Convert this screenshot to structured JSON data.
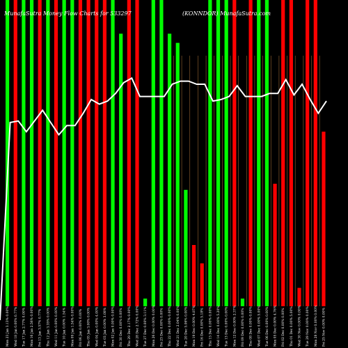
{
  "chart_data": {
    "type": "bar",
    "title_left": "MunafaSutra Money Flow Charts for 533297",
    "title_right": "(KONNDOR) MunafaSutra.com",
    "colors": {
      "background": "#000000",
      "up": "#00ff00",
      "down": "#ff0000",
      "line": "#ffffff",
      "grid": "#996633"
    },
    "ylim": [
      0,
      100
    ],
    "categories": [
      "Mon 23 Jan 2023",
      "Wed 18 Jan 2023",
      "Tue 17 Jan 2023",
      "Mon 16 Jan 2023",
      "Fri 13 Jan 2023",
      "Thu 12 Jan 2023",
      "Wed 11 Jan 2023",
      "Tue 10 Jan 2023",
      "Mon 09 Jan 2023",
      "Fri 06 Jan 2023",
      "Thu 05 Jan 2023",
      "Wed 04 Jan 2023",
      "Tue 03 Jan 2023",
      "Mon 02 Jan 2023",
      "Fri 30 Dec 2022",
      "Thu 29 Dec 2022",
      "Wed 28 Dec 2022",
      "Tue 27 Dec 2022",
      "Mon 26 Dec 2022",
      "Fri 23 Dec 2022",
      "Thu 22 Dec 2022",
      "Wed 21 Dec 2022",
      "Tue 20 Dec 2022",
      "Mon 19 Dec 2022",
      "Fri 16 Dec 2022",
      "Thu 15 Dec 2022",
      "Wed 14 Dec 2022",
      "Tue 13 Dec 2022",
      "Mon 12 Dec 2022",
      "Fri 09 Dec 2022",
      "Thu 08 Dec 2022",
      "Wed 07 Dec 2022",
      "Tue 06 Dec 2022",
      "Mon 05 Dec 2022",
      "Fri 02 Dec 2022",
      "Thu 01 Dec 2022",
      "Wed 30 Nov 2022",
      "Tue 29 Nov 2022",
      "Mon 28 Nov 2022",
      "Fri 25 Nov 2022"
    ],
    "tick_labels": [
      "Mon 23 Jan 3.13% 0.00%",
      "Wed 18 Jan 0.00% 0.77%",
      "Tue 17 Jan 2.77% 0.00%",
      "Mon 16 Jan 2.56% 0.00%",
      "Fri 13 Jan 3.57% 0.77%",
      "Thu 12 Jan 3.35% 0.00%",
      "Wed 11 Jan 0.00% 0.00%",
      "Tue 10 Jan 0.00% 1.54%",
      "Mon 09 Jan 1.54% 0.00%",
      "Fri 06 Jan 0.00% 0.00%",
      "Thu 05 Jan 3.00% 0.00%",
      "Wed 04 Jan 0.00% 4.00%",
      "Tue 03 Jan 0.00% 3.08%",
      "Mon 02 Jan 0.00% 0.00%",
      "Fri 30 Dec 0.00% 0.00%",
      "Thu 29 Dec 2.17% 0.00%",
      "Wed 28 Dec 2.72% 0.00%",
      "Tue 27 Dec 0.00% 3.11%",
      "Mon 26 Dec 0.00% 0.00%",
      "Fri 23 Dec 0.00% 0.00%",
      "Thu 22 Dec 0.00% 0.00%",
      "Wed 21 Dec 2.04% 0.00%",
      "Tue 20 Dec 5.06% 0.00%",
      "Mon 19 Dec 0.00% 4.87%",
      "Fri 16 Dec 0.00% 5.18%",
      "Thu 15 Dec 0.00% 0.00%",
      "Wed 14 Dec 0.00% 5.20%",
      "Tue 13 Dec 0.00% 0.00%",
      "Mon 12 Dec 0.00% 2.37%",
      "Fri 09 Dec 0.00% 0.00%",
      "Thu 08 Dec 0.00% 0.00%",
      "Wed 07 Dec 0.00% 5.00%",
      "Tue 06 Dec 0.00% 0.00%",
      "Mon 05 Dec 0.00% 4.76%",
      "Fri 02 Dec 0.00% 0.00%",
      "Thu 01 Dec 0.00% 5.00%",
      "Wed 30 Nov 0.00% 0.00%",
      "Tue 29 Nov 0.00% 0.00%",
      "Mon 28 Nov 0.00% 0.00%",
      "Fri 25 Nov 0.00% 0.00%"
    ],
    "series": [
      {
        "kind": "bars",
        "colors": [
          "up",
          "down",
          "up",
          "up",
          "down",
          "up",
          "down",
          "up",
          "up",
          "down",
          "down",
          "down",
          "down",
          "up",
          "up",
          "down",
          "down",
          "up",
          "up",
          "up",
          "up",
          "up",
          "up",
          "down",
          "down",
          "up",
          "up",
          "up",
          "down",
          "up",
          "down",
          "up",
          "up",
          "down",
          "down",
          "down",
          "down",
          "down",
          "down",
          "down"
        ],
        "values": [
          100,
          100,
          100,
          100,
          100,
          100,
          100,
          100,
          100,
          100,
          100,
          100,
          100,
          100,
          89,
          100,
          100,
          2.5,
          100,
          100,
          89,
          86,
          38,
          20,
          14,
          100,
          100,
          100,
          100,
          2.5,
          100,
          100,
          100,
          40,
          100,
          100,
          6,
          100,
          100,
          57
        ]
      },
      {
        "kind": "line",
        "values": [
          60,
          60.5,
          57,
          60.5,
          64,
          60,
          56,
          59,
          59,
          63,
          67.5,
          66,
          67,
          69.5,
          73,
          74.5,
          68.5,
          68.5,
          68.5,
          68.5,
          72.5,
          73.5,
          73.5,
          72.5,
          72.5,
          67,
          67.5,
          68.5,
          72,
          68.5,
          68.5,
          68.5,
          69.5,
          69.5,
          74,
          69,
          72.5,
          67.5,
          63,
          67
        ]
      }
    ]
  }
}
